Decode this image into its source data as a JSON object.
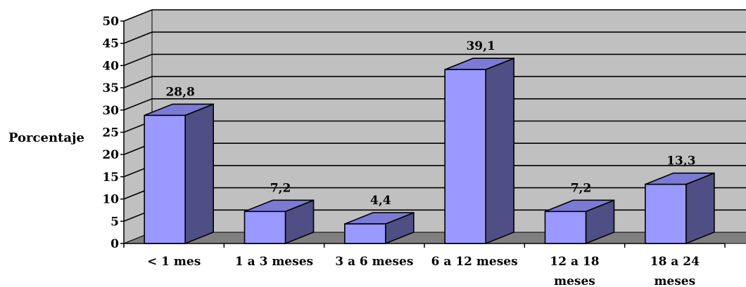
{
  "chart_data": {
    "type": "bar",
    "title": "",
    "xlabel": "",
    "ylabel": "Porcentaje",
    "ylim": [
      0,
      50
    ],
    "yticks": [
      "0",
      "5",
      "10",
      "15",
      "20",
      "25",
      "30",
      "35",
      "40",
      "45",
      "50"
    ],
    "categories": [
      [
        "< 1 mes"
      ],
      [
        "1 a 3 meses"
      ],
      [
        "3 a 6 meses"
      ],
      [
        "6 a 12 meses"
      ],
      [
        "12 a 18",
        "meses"
      ],
      [
        "18 a 24",
        "meses"
      ]
    ],
    "values": [
      28.8,
      7.2,
      4.4,
      39.1,
      7.2,
      13.3
    ],
    "data_labels": [
      "28,8",
      "7,2",
      "4,4",
      "39,1",
      "7,2",
      "13,3"
    ],
    "grid": true,
    "style": "3d-column"
  },
  "colors": {
    "bar_front": "#9999ff",
    "bar_top": "#7b7bd6",
    "bar_side": "#4f4f85",
    "wall": "#c0c0c0",
    "floor": "#808080",
    "gridline": "#000000"
  }
}
